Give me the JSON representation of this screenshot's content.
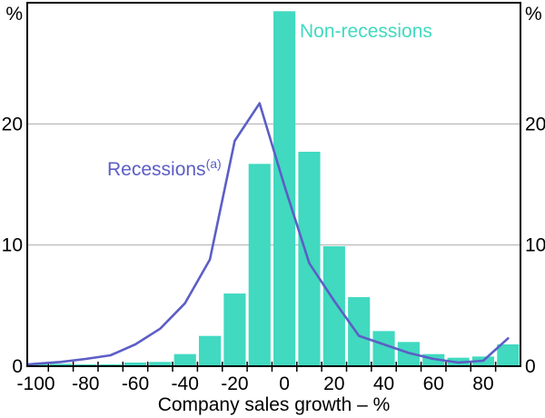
{
  "chart_data": {
    "type": "bar",
    "subtype": "histogram-with-line-overlay",
    "title": "",
    "xlabel": "Company sales growth – %",
    "y_unit_label": "%",
    "xlim": [
      -103.5,
      95
    ],
    "ylim": [
      0,
      30
    ],
    "grid": "horizontal",
    "gridline_values": [
      10,
      20
    ],
    "y_ticks": [
      {
        "value": 0,
        "label": "0"
      },
      {
        "value": 10,
        "label": "10"
      },
      {
        "value": 20,
        "label": "20"
      }
    ],
    "x_tick_labels": [
      {
        "value": -100,
        "label": "-100"
      },
      {
        "value": -80,
        "label": "-80"
      },
      {
        "value": -60,
        "label": "-60"
      },
      {
        "value": -40,
        "label": "-40"
      },
      {
        "value": -20,
        "label": "-20"
      },
      {
        "value": 0,
        "label": "0"
      },
      {
        "value": 20,
        "label": "20"
      },
      {
        "value": 40,
        "label": "40"
      },
      {
        "value": 60,
        "label": "60"
      },
      {
        "value": 80,
        "label": "80"
      }
    ],
    "bin_edge_ticks": [
      -95,
      -85,
      -75,
      -65,
      -55,
      -45,
      -35,
      -25,
      -15,
      -5,
      5,
      15,
      25,
      35,
      45,
      55,
      65,
      75,
      85
    ],
    "bin_width": 10,
    "categories": [
      -100,
      -90,
      -80,
      -70,
      -60,
      -50,
      -40,
      -30,
      -20,
      -10,
      0,
      10,
      20,
      30,
      40,
      50,
      60,
      70,
      80,
      90
    ],
    "series": [
      {
        "name": "Non-recessions",
        "type": "bar",
        "color": "#41D9C0",
        "values": [
          0.25,
          0.2,
          0.15,
          0.15,
          0.3,
          0.35,
          1.0,
          2.5,
          6.0,
          16.7,
          29.3,
          17.7,
          9.9,
          5.7,
          2.9,
          2.0,
          1.0,
          0.7,
          0.8,
          1.8
        ]
      },
      {
        "name": "Recessions",
        "footnote_marker": "(a)",
        "type": "line",
        "color": "#5C5EC5",
        "x": [
          -103,
          -100,
          -90,
          -80,
          -70,
          -60,
          -50,
          -40,
          -30,
          -20,
          -10,
          0,
          10,
          20,
          30,
          40,
          50,
          60,
          70,
          80,
          90
        ],
        "values": [
          0.15,
          0.2,
          0.35,
          0.6,
          0.9,
          1.8,
          3.1,
          5.2,
          8.8,
          18.6,
          21.7,
          14.9,
          8.5,
          5.4,
          2.5,
          1.8,
          1.1,
          0.6,
          0.3,
          0.45,
          2.3
        ]
      }
    ],
    "legend_position": "annotations-inside-plot",
    "axis_color": "#000000",
    "gridline_color": "#ABABAB",
    "background_color": "#FFFFFF"
  }
}
